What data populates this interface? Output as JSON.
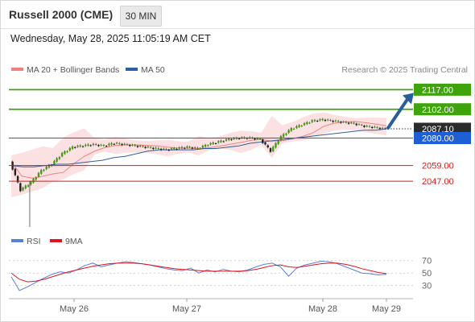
{
  "header": {
    "title": "Russell 2000 (CME)",
    "timeframe": "30 MIN",
    "datetime": "Wednesday, May 28, 2025 11:05:19 AM CET"
  },
  "legend": {
    "items": [
      {
        "label": "MA 20 + Bollinger Bands",
        "color": "#f08080"
      },
      {
        "label": "MA 50",
        "color": "#2f5f9f"
      }
    ],
    "credit": "Research © 2025 Trading Central"
  },
  "chart_data": [
    {
      "type": "line",
      "title": "",
      "xlabel": "",
      "ylabel": "",
      "x_ticks": [
        "May 26",
        "May 27",
        "May 28",
        "May 29"
      ],
      "ylim": [
        2012,
        2124
      ],
      "grid": false,
      "legend_position": "top-left",
      "current_price": "2087.10",
      "price_line": [
        2062,
        2040,
        2046,
        2055,
        2060,
        2068,
        2073,
        2074,
        2075,
        2074,
        2076,
        2075,
        2074,
        2073,
        2072,
        2071,
        2072,
        2073,
        2072,
        2075,
        2077,
        2079,
        2080,
        2080,
        2079,
        2070,
        2081,
        2087,
        2090,
        2093,
        2094,
        2093,
        2092,
        2091,
        2089,
        2088,
        2087
      ],
      "ma50_line": [
        2059,
        2058,
        2058,
        2059,
        2060,
        2060,
        2061,
        2062,
        2063,
        2065,
        2066,
        2068,
        2070,
        2071,
        2071,
        2071,
        2071,
        2072,
        2072,
        2073,
        2074,
        2076,
        2077,
        2078,
        2079,
        2080,
        2081,
        2082,
        2083,
        2084,
        2085,
        2086,
        2086,
        2087
      ],
      "levels": [
        {
          "value": "2117.00",
          "kind": "resistance",
          "color": "#3fa40c"
        },
        {
          "value": "2102.00",
          "kind": "resistance",
          "color": "#3fa40c"
        },
        {
          "value": "2087.10",
          "kind": "current",
          "color": "#333333"
        },
        {
          "value": "2080.00",
          "kind": "pivot",
          "color": "#1f5fd6"
        },
        {
          "value": "2059.00",
          "kind": "support",
          "color": "#cc1f1f"
        },
        {
          "value": "2047.00",
          "kind": "support",
          "color": "#cc1f1f"
        }
      ],
      "projection": {
        "from": 2087.1,
        "to": 2117,
        "color": "#2a5d9e"
      }
    },
    {
      "type": "line",
      "title": "",
      "series": [
        {
          "name": "RSI",
          "color": "#5b7fd8"
        },
        {
          "name": "9MA",
          "color": "#e0141e"
        }
      ],
      "ylim": [
        18,
        80
      ],
      "y_ticks": [
        "70",
        "50",
        "30"
      ],
      "grid": false,
      "legend_position": "top-left",
      "rsi_values": [
        44,
        22,
        28,
        35,
        42,
        48,
        52,
        50,
        55,
        62,
        66,
        60,
        63,
        66,
        68,
        67,
        65,
        63,
        60,
        57,
        55,
        54,
        58,
        50,
        55,
        52,
        56,
        53,
        52,
        55,
        60,
        64,
        66,
        60,
        45,
        58,
        63,
        66,
        69,
        68,
        65,
        60,
        55,
        50,
        49,
        47,
        48
      ],
      "ma9_values": [
        50,
        40,
        36,
        37,
        40,
        44,
        48,
        52,
        55,
        58,
        61,
        63,
        65,
        66,
        66,
        66,
        65,
        63,
        61,
        59,
        57,
        56,
        55,
        54,
        53,
        53,
        53,
        53,
        53,
        54,
        56,
        59,
        62,
        63,
        60,
        59,
        61,
        63,
        65,
        66,
        66,
        64,
        61,
        57,
        54,
        51,
        49
      ]
    }
  ]
}
